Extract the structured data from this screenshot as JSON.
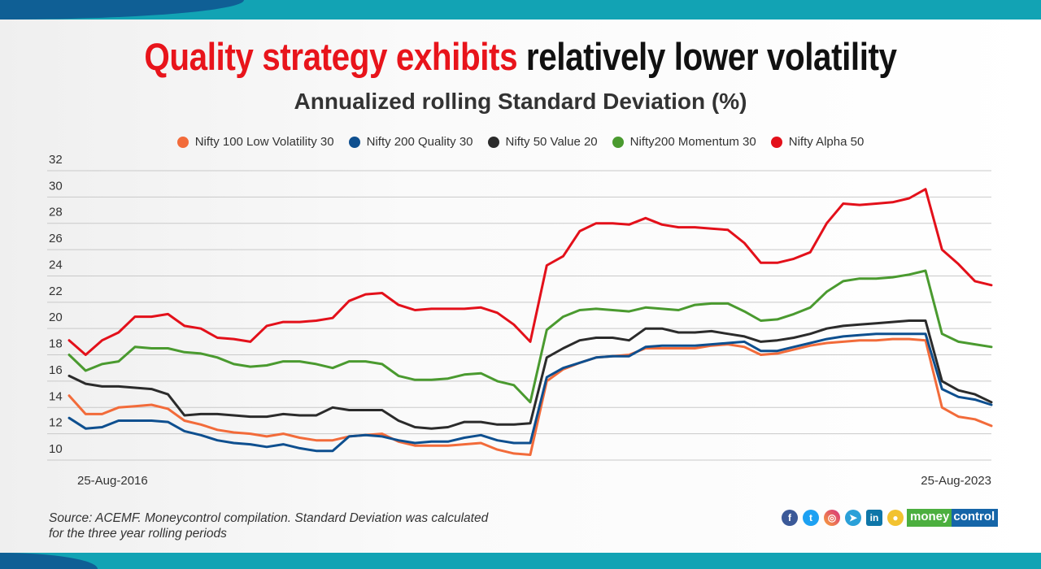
{
  "header": {
    "title_highlight": "Quality strategy exhibits",
    "title_rest": " relatively lower volatility",
    "subtitle": "Annualized rolling Standard Deviation (%)"
  },
  "footer": {
    "source_line1": "Source: ACEMF. Moneycontrol compilation. Standard Deviation was calculated",
    "source_line2": "for the three year rolling periods",
    "brand_part1": "money",
    "brand_part2": "control",
    "social_icons": [
      "facebook-icon",
      "twitter-icon",
      "instagram-icon",
      "telegram-icon",
      "linkedin-icon",
      "koo-icon"
    ]
  },
  "colors": {
    "accent_red": "#e8141b",
    "band": "#12a3b4"
  },
  "chart_data": {
    "type": "line",
    "title": "Annualized rolling Standard Deviation (%)",
    "x_tick_labels": [
      "25-Aug-2016",
      "25-Aug-2023"
    ],
    "x_range": [
      "25-Aug-2016",
      "25-Aug-2023"
    ],
    "x_sampling": "evenly spaced, 57 points",
    "y_ticks": [
      10,
      12,
      14,
      16,
      18,
      20,
      22,
      24,
      26,
      28,
      30,
      32
    ],
    "ylim": [
      10,
      32
    ],
    "grid": true,
    "legend": "top",
    "series": [
      {
        "name": "Nifty 100 Low Volatility 30",
        "color": "#f26b3a",
        "values": [
          14.9,
          13.5,
          13.5,
          14.0,
          14.1,
          14.2,
          13.9,
          13.0,
          12.7,
          12.3,
          12.1,
          12.0,
          11.8,
          12.0,
          11.7,
          11.5,
          11.5,
          11.8,
          11.9,
          12.0,
          11.4,
          11.1,
          11.1,
          11.1,
          11.2,
          11.3,
          10.8,
          10.5,
          10.4,
          16.0,
          16.9,
          17.4,
          17.8,
          17.9,
          18.0,
          18.5,
          18.5,
          18.5,
          18.5,
          18.7,
          18.8,
          18.6,
          18.0,
          18.1,
          18.4,
          18.7,
          18.9,
          19.0,
          19.1,
          19.1,
          19.2,
          19.2,
          19.1,
          14.0,
          13.3,
          13.1,
          12.6
        ]
      },
      {
        "name": "Nifty 200 Quality 30",
        "color": "#0e4f8f",
        "values": [
          13.2,
          12.4,
          12.5,
          13.0,
          13.0,
          13.0,
          12.9,
          12.2,
          11.9,
          11.5,
          11.3,
          11.2,
          11.0,
          11.2,
          10.9,
          10.7,
          10.7,
          11.8,
          11.9,
          11.8,
          11.5,
          11.3,
          11.4,
          11.4,
          11.7,
          11.9,
          11.5,
          11.3,
          11.3,
          16.3,
          17.0,
          17.4,
          17.8,
          17.9,
          17.9,
          18.6,
          18.7,
          18.7,
          18.7,
          18.8,
          18.9,
          19.0,
          18.3,
          18.3,
          18.6,
          18.9,
          19.2,
          19.4,
          19.5,
          19.6,
          19.6,
          19.6,
          19.6,
          15.4,
          14.8,
          14.6,
          14.2
        ]
      },
      {
        "name": "Nifty 50 Value 20",
        "color": "#2b2b2b",
        "values": [
          16.4,
          15.8,
          15.6,
          15.6,
          15.5,
          15.4,
          15.0,
          13.4,
          13.5,
          13.5,
          13.4,
          13.3,
          13.3,
          13.5,
          13.4,
          13.4,
          14.0,
          13.8,
          13.8,
          13.8,
          13.0,
          12.5,
          12.4,
          12.5,
          12.9,
          12.9,
          12.7,
          12.7,
          12.8,
          17.8,
          18.5,
          19.1,
          19.3,
          19.3,
          19.1,
          20.0,
          20.0,
          19.7,
          19.7,
          19.8,
          19.6,
          19.4,
          19.0,
          19.1,
          19.3,
          19.6,
          20.0,
          20.2,
          20.3,
          20.4,
          20.5,
          20.6,
          20.6,
          16.0,
          15.3,
          15.0,
          14.4
        ]
      },
      {
        "name": "Nifty200 Momentum 30",
        "color": "#4a9a2f",
        "values": [
          18.0,
          16.8,
          17.3,
          17.5,
          18.6,
          18.5,
          18.5,
          18.2,
          18.1,
          17.8,
          17.3,
          17.1,
          17.2,
          17.5,
          17.5,
          17.3,
          17.0,
          17.5,
          17.5,
          17.3,
          16.4,
          16.1,
          16.1,
          16.2,
          16.5,
          16.6,
          16.0,
          15.7,
          14.4,
          19.9,
          20.9,
          21.4,
          21.5,
          21.4,
          21.3,
          21.6,
          21.5,
          21.4,
          21.8,
          21.9,
          21.9,
          21.3,
          20.6,
          20.7,
          21.1,
          21.6,
          22.8,
          23.6,
          23.8,
          23.8,
          23.9,
          24.1,
          24.4,
          19.6,
          19.0,
          18.8,
          18.6
        ]
      },
      {
        "name": "Nifty Alpha 50",
        "color": "#e3101a",
        "values": [
          19.1,
          18.0,
          19.1,
          19.7,
          20.9,
          20.9,
          21.1,
          20.2,
          20.0,
          19.3,
          19.2,
          19.0,
          20.2,
          20.5,
          20.5,
          20.6,
          20.8,
          22.1,
          22.6,
          22.7,
          21.8,
          21.4,
          21.5,
          21.5,
          21.5,
          21.6,
          21.2,
          20.3,
          19.0,
          24.8,
          25.5,
          27.4,
          28.0,
          28.0,
          27.9,
          28.4,
          27.9,
          27.7,
          27.7,
          27.6,
          27.5,
          26.5,
          25.0,
          25.0,
          25.3,
          25.8,
          28.0,
          29.5,
          29.4,
          29.5,
          29.6,
          29.9,
          30.6,
          26.0,
          24.9,
          23.6,
          23.3
        ]
      }
    ]
  }
}
